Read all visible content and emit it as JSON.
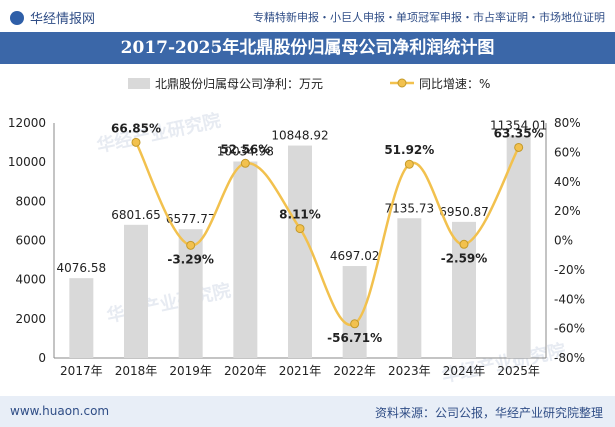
{
  "header": {
    "brand": "华经情报网",
    "taglines": "专精特新申报・小巨人申报・单项冠军申报・市占率证明・市场地位证明",
    "title": "2017-2025年北鼎股份归属母公司净利润统计图"
  },
  "footer": {
    "website": "www.huaon.com",
    "source": "资料来源：公司公报，华经产业研究院整理"
  },
  "watermark": "华经产业研究院",
  "colors": {
    "bar": "#d9d9d9",
    "line": "#f2c14e",
    "title_bg": "#3b67a8",
    "brand": "#2f4d86"
  },
  "chart_data": {
    "type": "bar",
    "categories": [
      "2017年",
      "2018年",
      "2019年",
      "2020年",
      "2021年",
      "2022年",
      "2023年",
      "2024年",
      "2025年"
    ],
    "series": [
      {
        "name": "北鼎股份归属母公司净利：万元",
        "type": "bar",
        "axis": "left",
        "values": [
          4076.58,
          6801.65,
          6577.77,
          10034.98,
          10848.92,
          4697.02,
          7135.73,
          6950.87,
          11354.01
        ],
        "labels": [
          "4076.58",
          "6801.65",
          "6577.77",
          "10034.98",
          "10848.92",
          "4697.02",
          "7135.73",
          "6950.87",
          "11354.01"
        ]
      },
      {
        "name": "同比增速：%",
        "type": "line",
        "axis": "right",
        "values": [
          null,
          66.85,
          -3.29,
          52.56,
          8.11,
          -56.71,
          51.92,
          -2.59,
          63.35
        ],
        "labels": [
          "",
          "66.85%",
          "-3.29%",
          "52.56%",
          "8.11%",
          "-56.71%",
          "51.92%",
          "-2.59%",
          "63.35%"
        ]
      }
    ],
    "y_left": {
      "ticks": [
        "0",
        "2000",
        "4000",
        "6000",
        "8000",
        "10000",
        "12000"
      ],
      "min": 0,
      "max": 12000
    },
    "y_right": {
      "ticks": [
        "-80%",
        "-60%",
        "-40%",
        "-20%",
        "0%",
        "20%",
        "40%",
        "60%",
        "80%"
      ],
      "min": -80,
      "max": 80
    },
    "legend_position": "top-center",
    "grid": false
  }
}
